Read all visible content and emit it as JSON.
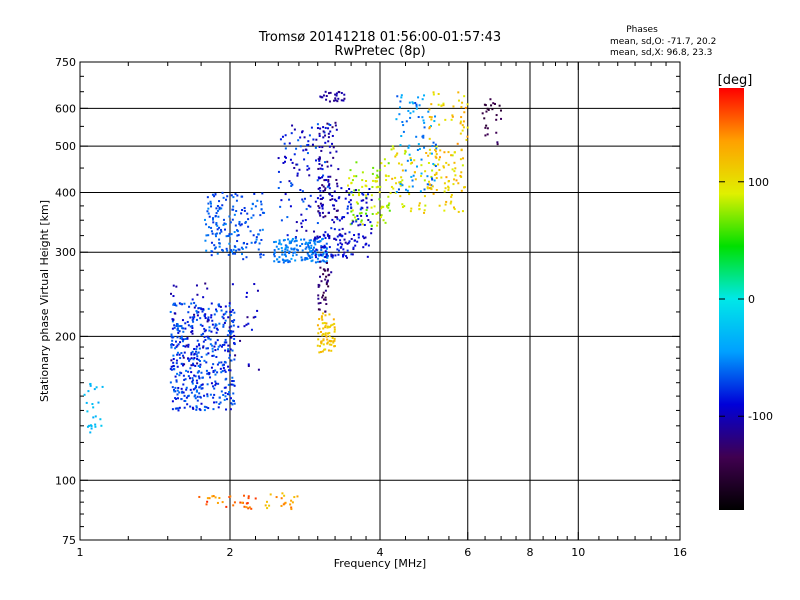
{
  "chart_data": {
    "type": "scatter",
    "title": "Tromsø 20141218 01:56:00-01:57:43",
    "subtitle": "RwPretec (8p)",
    "xlabel": "Frequency [MHz]",
    "ylabel": "Stationary phase Virtual Height [km]",
    "xscale": "log",
    "yscale": "log",
    "xlim": [
      1,
      16
    ],
    "ylim": [
      75,
      750
    ],
    "grid": true,
    "x_ticks": [
      1,
      2,
      4,
      6,
      8,
      10,
      16
    ],
    "x_tick_labels": [
      "1",
      "2",
      "4",
      "6",
      "8",
      "10",
      "16"
    ],
    "x_minor_ticks": [
      1.25,
      1.5,
      1.75,
      2.25,
      2.5,
      2.75,
      3,
      3.25,
      3.5,
      3.75,
      4.5,
      5,
      5.5,
      6.5,
      7,
      7.5,
      8.5,
      9,
      9.5,
      11,
      12,
      13,
      14,
      15
    ],
    "x_gridlines": [
      2,
      4,
      6,
      8,
      10
    ],
    "y_ticks": [
      75,
      100,
      200,
      300,
      400,
      500,
      600,
      750
    ],
    "y_tick_labels": [
      "75",
      "100",
      "200",
      "300",
      "400",
      "500",
      "600",
      "750"
    ],
    "y_minor_ticks": [
      80,
      85,
      90,
      95,
      110,
      120,
      130,
      140,
      150,
      160,
      170,
      180,
      190,
      225,
      250,
      275,
      325,
      350,
      375,
      450,
      550,
      650,
      700
    ],
    "y_gridlines": [
      100,
      200,
      300,
      400,
      500,
      600
    ],
    "legend": {
      "title": "Phases",
      "lines": [
        "mean, sd,O: -71.7, 20.2",
        "mean, sd,X:  96.8, 23.3"
      ],
      "placement": "top-right"
    },
    "colorbar": {
      "title": "[deg]",
      "range": [
        -180,
        180
      ],
      "ticks": [
        100,
        0,
        -100
      ],
      "tick_labels": [
        "100",
        "0",
        "-100"
      ],
      "colors": [
        "#000000",
        "#400050",
        "#0000d8",
        "#00a0ff",
        "#00e8e8",
        "#00e000",
        "#e0f000",
        "#ffa000",
        "#ff0000"
      ]
    },
    "series_note": "ionogram echoes; each point colored by phase (deg)",
    "series": [
      {
        "clusters": [
          {
            "x": [
              1.52,
              2.05
            ],
            "y": [
              140,
              235
            ],
            "phase": [
              -95,
              -55
            ],
            "n": 450
          },
          {
            "x": [
              1.78,
              2.35
            ],
            "y": [
              290,
              400
            ],
            "phase": [
              -80,
              -50
            ],
            "n": 170
          },
          {
            "x": [
              2.45,
              3.15
            ],
            "y": [
              285,
              320
            ],
            "phase": [
              -65,
              -45
            ],
            "n": 160
          },
          {
            "x": [
              2.95,
              3.85
            ],
            "y": [
              292,
              330
            ],
            "phase": [
              -110,
              -75
            ],
            "n": 90
          },
          {
            "x": [
              2.5,
              3.2
            ],
            "y": [
              320,
              560
            ],
            "phase": [
              -110,
              -60
            ],
            "n": 120
          },
          {
            "x": [
              3.0,
              3.3
            ],
            "y": [
              350,
              560
            ],
            "phase": [
              -130,
              -90
            ],
            "n": 80
          },
          {
            "x": [
              3.45,
              4.2
            ],
            "y": [
              340,
              470
            ],
            "phase": [
              60,
              100
            ],
            "n": 90
          },
          {
            "x": [
              3.2,
              3.9
            ],
            "y": [
              325,
              410
            ],
            "phase": [
              -110,
              -70
            ],
            "n": 60
          },
          {
            "x": [
              4.2,
              5.9
            ],
            "y": [
              360,
              500
            ],
            "phase": [
              80,
              130
            ],
            "n": 110
          },
          {
            "x": [
              4.3,
              5.2
            ],
            "y": [
              400,
              640
            ],
            "phase": [
              -70,
              -30
            ],
            "n": 80
          },
          {
            "x": [
              5.0,
              6.0
            ],
            "y": [
              400,
              650
            ],
            "phase": [
              90,
              140
            ],
            "n": 70
          },
          {
            "x": [
              3.0,
              3.25
            ],
            "y": [
              185,
              225
            ],
            "phase": [
              100,
              130
            ],
            "n": 70
          },
          {
            "x": [
              3.0,
              3.2
            ],
            "y": [
              225,
              290
            ],
            "phase": [
              -150,
              -110
            ],
            "n": 40
          },
          {
            "x": [
              1.65,
              2.3
            ],
            "y": [
              87,
              93
            ],
            "phase": [
              130,
              170
            ],
            "n": 30
          },
          {
            "x": [
              2.35,
              2.75
            ],
            "y": [
              87,
              94
            ],
            "phase": [
              110,
              150
            ],
            "n": 20
          },
          {
            "x": [
              1.02,
              1.12
            ],
            "y": [
              125,
              160
            ],
            "phase": [
              -40,
              -20
            ],
            "n": 25
          },
          {
            "x": [
              6.4,
              7.0
            ],
            "y": [
              500,
              640
            ],
            "phase": [
              -160,
              -120
            ],
            "n": 25
          },
          {
            "x": [
              3.0,
              3.45
            ],
            "y": [
              620,
              650
            ],
            "phase": [
              -120,
              -100
            ],
            "n": 25
          },
          {
            "x": [
              1.5,
              2.3
            ],
            "y": [
              170,
              260
            ],
            "phase": [
              -120,
              -80
            ],
            "n": 60
          }
        ]
      }
    ]
  }
}
